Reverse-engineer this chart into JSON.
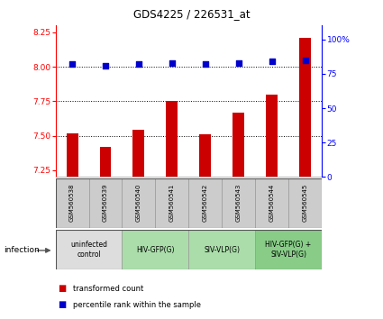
{
  "title": "GDS4225 / 226531_at",
  "samples": [
    "GSM560538",
    "GSM560539",
    "GSM560540",
    "GSM560541",
    "GSM560542",
    "GSM560543",
    "GSM560544",
    "GSM560545"
  ],
  "bar_values": [
    7.52,
    7.42,
    7.54,
    7.75,
    7.51,
    7.67,
    7.8,
    8.21
  ],
  "dot_values": [
    82,
    81,
    82,
    83,
    82,
    83,
    84,
    85
  ],
  "ylim_left": [
    7.2,
    8.3
  ],
  "yticks_left": [
    7.25,
    7.5,
    7.75,
    8.0,
    8.25
  ],
  "ylim_right": [
    0,
    110
  ],
  "yticks_right": [
    0,
    25,
    50,
    75,
    100
  ],
  "ytick_labels_right": [
    "0",
    "25",
    "50",
    "75",
    "100%"
  ],
  "bar_color": "#cc0000",
  "dot_color": "#0000cc",
  "bar_bottom": 7.2,
  "groups": [
    {
      "label": "uninfected\ncontrol",
      "start": 0,
      "end": 2,
      "color": "#dddddd"
    },
    {
      "label": "HIV-GFP(G)",
      "start": 2,
      "end": 4,
      "color": "#aaddaa"
    },
    {
      "label": "SIV-VLP(G)",
      "start": 4,
      "end": 6,
      "color": "#aaddaa"
    },
    {
      "label": "HIV-GFP(G) +\nSIV-VLP(G)",
      "start": 6,
      "end": 8,
      "color": "#88cc88"
    }
  ],
  "infection_label": "infection",
  "legend_bar_label": "transformed count",
  "legend_dot_label": "percentile rank within the sample",
  "hlines": [
    8.0,
    7.75,
    7.5
  ]
}
